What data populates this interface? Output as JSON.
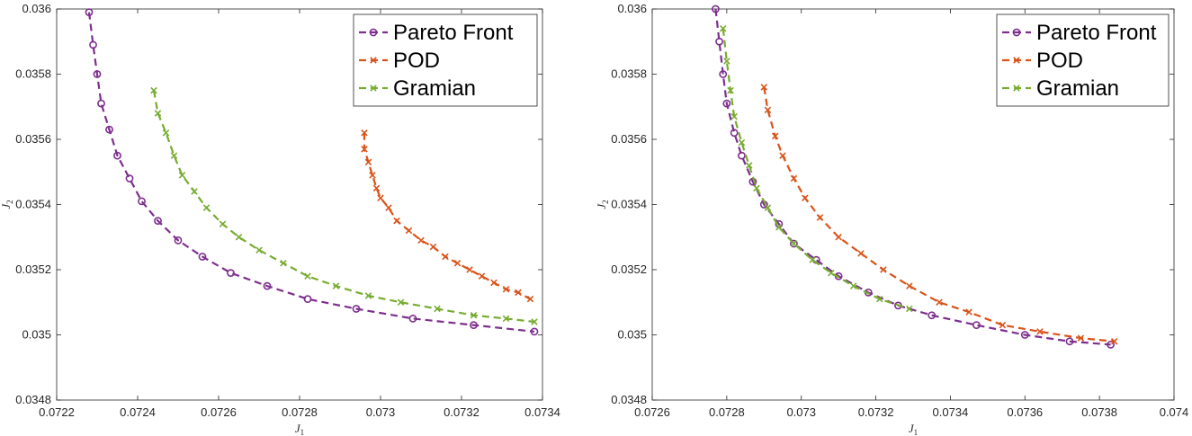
{
  "chart_data": [
    {
      "type": "line",
      "xlabel": "J",
      "xlabel_sub": "1",
      "ylabel": "J",
      "ylabel_sub": "2",
      "xlim": [
        0.0722,
        0.0734
      ],
      "ylim": [
        0.0348,
        0.036
      ],
      "xticks": [
        "0.0722",
        "0.0724",
        "0.0726",
        "0.0728",
        "0.073",
        "0.0732",
        "0.0734"
      ],
      "yticks": [
        "0.0348",
        "0.035",
        "0.0352",
        "0.0354",
        "0.0356",
        "0.0358",
        "0.036"
      ],
      "grid": false,
      "legend": "top-right",
      "series": [
        {
          "name": "Pareto Front",
          "color": "#7e2f8e",
          "marker": "circle",
          "x": [
            0.07228,
            0.07229,
            0.0723,
            0.07231,
            0.07233,
            0.07235,
            0.07238,
            0.07241,
            0.07245,
            0.0725,
            0.07256,
            0.07263,
            0.07272,
            0.07282,
            0.07294,
            0.07308,
            0.07323,
            0.07338
          ],
          "y": [
            0.03599,
            0.03589,
            0.0358,
            0.03571,
            0.03563,
            0.03555,
            0.03548,
            0.03541,
            0.03535,
            0.03529,
            0.03524,
            0.03519,
            0.03515,
            0.03511,
            0.03508,
            0.03505,
            0.03503,
            0.03501
          ],
          "points_x": [
            0.07228,
            0.07229,
            0.0723,
            0.07231,
            0.07233,
            0.07235,
            0.07238,
            0.07241,
            0.07245,
            0.0725,
            0.07256,
            0.07263,
            0.07272,
            0.07282,
            0.07294,
            0.07308,
            0.07323,
            0.07338
          ]
        },
        {
          "name": "POD",
          "color": "#d95319",
          "marker": "x",
          "x": [
            0.07296,
            0.07296,
            0.07297,
            0.07298,
            0.07299,
            0.073,
            0.07302,
            0.07304,
            0.07307,
            0.0731,
            0.07313,
            0.07316,
            0.07319,
            0.07322,
            0.07325,
            0.07328,
            0.07331,
            0.07334,
            0.07337
          ],
          "y": [
            0.03562,
            0.03557,
            0.03553,
            0.03549,
            0.03545,
            0.03542,
            0.03539,
            0.03535,
            0.03532,
            0.03529,
            0.03527,
            0.03524,
            0.03522,
            0.0352,
            0.03518,
            0.03516,
            0.03514,
            0.03513,
            0.03511
          ]
        },
        {
          "name": "Gramian",
          "color": "#77ac30",
          "marker": "x",
          "x": [
            0.07244,
            0.07245,
            0.07247,
            0.07249,
            0.07251,
            0.07254,
            0.07257,
            0.07261,
            0.07265,
            0.0727,
            0.07276,
            0.07282,
            0.07289,
            0.07297,
            0.07305,
            0.07314,
            0.07323,
            0.07331,
            0.07338
          ],
          "y": [
            0.03575,
            0.03568,
            0.03562,
            0.03555,
            0.03549,
            0.03544,
            0.03539,
            0.03534,
            0.0353,
            0.03526,
            0.03522,
            0.03518,
            0.03515,
            0.03512,
            0.0351,
            0.03508,
            0.03506,
            0.03505,
            0.03504
          ]
        }
      ]
    },
    {
      "type": "line",
      "xlabel": "J",
      "xlabel_sub": "1",
      "ylabel": "J",
      "ylabel_sub": "2",
      "xlim": [
        0.0726,
        0.074
      ],
      "ylim": [
        0.0348,
        0.036
      ],
      "xticks": [
        "0.0726",
        "0.0728",
        "0.073",
        "0.0732",
        "0.0734",
        "0.0736",
        "0.0738",
        "0.074"
      ],
      "yticks": [
        "0.0348",
        "0.035",
        "0.0352",
        "0.0354",
        "0.0356",
        "0.0358",
        "0.036"
      ],
      "grid": false,
      "legend": "top-right",
      "series": [
        {
          "name": "Pareto Front",
          "color": "#7e2f8e",
          "marker": "circle",
          "x": [
            0.07277,
            0.07278,
            0.07279,
            0.0728,
            0.07282,
            0.07284,
            0.07287,
            0.0729,
            0.07294,
            0.07298,
            0.07304,
            0.0731,
            0.07318,
            0.07326,
            0.07335,
            0.07347,
            0.0736,
            0.07372,
            0.07383
          ],
          "y": [
            0.036,
            0.0359,
            0.0358,
            0.03571,
            0.03562,
            0.03555,
            0.03547,
            0.0354,
            0.03534,
            0.03528,
            0.03523,
            0.03518,
            0.03513,
            0.03509,
            0.03506,
            0.03503,
            0.035,
            0.03498,
            0.03497
          ]
        },
        {
          "name": "POD",
          "color": "#d95319",
          "marker": "x",
          "x": [
            0.0729,
            0.07291,
            0.07293,
            0.07295,
            0.07298,
            0.07301,
            0.07305,
            0.0731,
            0.07316,
            0.07322,
            0.07329,
            0.07337,
            0.07345,
            0.07354,
            0.07364,
            0.07375,
            0.07384
          ],
          "y": [
            0.03576,
            0.03569,
            0.03561,
            0.03555,
            0.03548,
            0.03542,
            0.03536,
            0.0353,
            0.03525,
            0.0352,
            0.03515,
            0.0351,
            0.03507,
            0.03503,
            0.03501,
            0.03499,
            0.03498
          ]
        },
        {
          "name": "Gramian",
          "color": "#77ac30",
          "marker": "x",
          "x": [
            0.07279,
            0.0728,
            0.07281,
            0.07282,
            0.07284,
            0.07286,
            0.07288,
            0.07291,
            0.07294,
            0.07298,
            0.07303,
            0.07308,
            0.07314,
            0.07321,
            0.07329
          ],
          "y": [
            0.03594,
            0.03584,
            0.03575,
            0.03567,
            0.03559,
            0.03552,
            0.03545,
            0.03539,
            0.03533,
            0.03528,
            0.03523,
            0.03519,
            0.03515,
            0.03511,
            0.03508
          ]
        }
      ]
    }
  ]
}
